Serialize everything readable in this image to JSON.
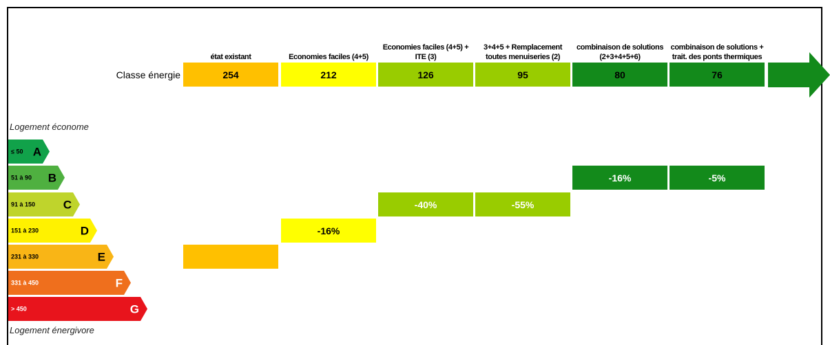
{
  "row_label": "Classe énergie",
  "columns": [
    {
      "header": "état existant",
      "value": 254,
      "color": "#ffc000"
    },
    {
      "header": "Economies faciles (4+5)",
      "value": 212,
      "change": "-16%",
      "color": "#ffff00"
    },
    {
      "header": "Economies faciles (4+5) + ITE (3)",
      "value": 126,
      "change": "-40%",
      "color": "#99cc00"
    },
    {
      "header": "3+4+5 + Remplacement toutes menuiseries (2)",
      "value": 95,
      "change": "-55%",
      "color": "#99cc00"
    },
    {
      "header": "combinaison de solutions (2+3+4+5+6)",
      "value": 80,
      "change": "-16%",
      "color": "#138a1b"
    },
    {
      "header": "combinaison de solutions + trait. des ponts thermiques",
      "value": 76,
      "change": "-5%",
      "color": "#138a1b"
    }
  ],
  "scale": {
    "top_label": "Logement économe",
    "bottom_label": "Logement énergivore",
    "classes": [
      {
        "range": "≤ 50",
        "letter": "A",
        "color": "#11a24a"
      },
      {
        "range": "51 à 90",
        "letter": "B",
        "color": "#4fb040"
      },
      {
        "range": "91 à 150",
        "letter": "C",
        "color": "#bfd42c"
      },
      {
        "range": "151 à 230",
        "letter": "D",
        "color": "#fff200"
      },
      {
        "range": "231 à 330",
        "letter": "E",
        "color": "#f9b516"
      },
      {
        "range": "331 à 450",
        "letter": "F",
        "color": "#ef6f1d"
      },
      {
        "range": "> 450",
        "letter": "G",
        "color": "#e8141c"
      }
    ]
  }
}
